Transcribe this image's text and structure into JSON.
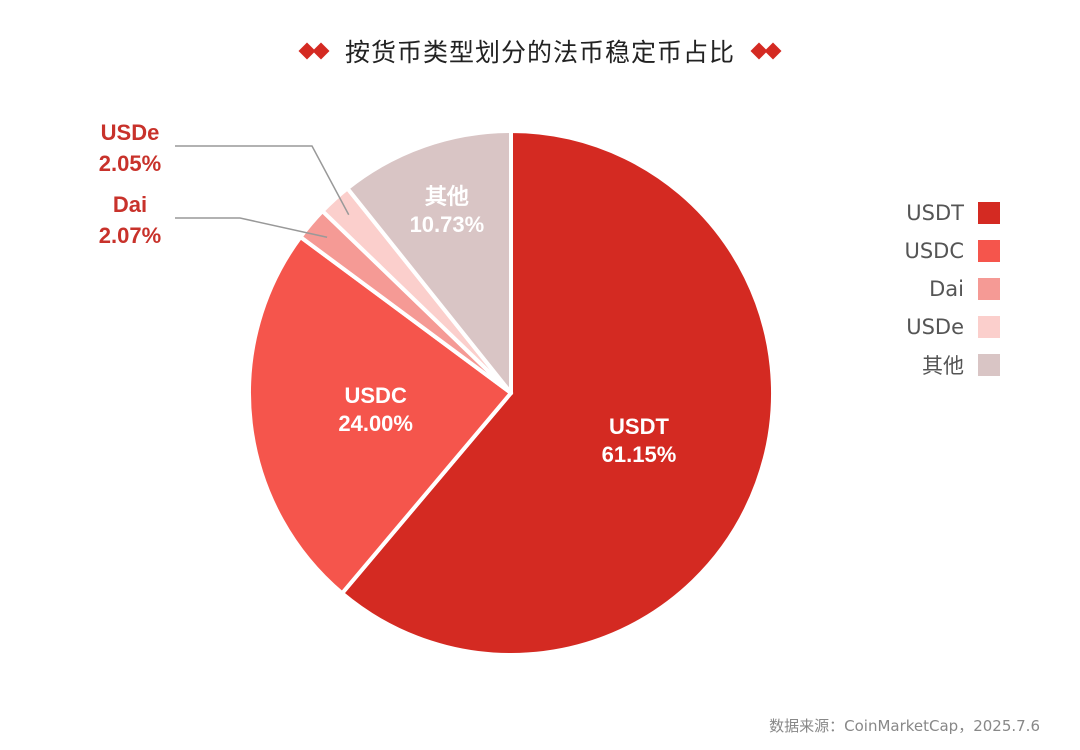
{
  "title": "按货币类型划分的法币稳定币占比",
  "source": "数据来源：CoinMarketCap，2025.7.6",
  "chart_data": {
    "type": "pie",
    "title": "按货币类型划分的法币稳定币占比",
    "slices": [
      {
        "name": "USDT",
        "value": 61.15,
        "value_label": "61.15%",
        "color": "#d42a22",
        "label_placement": "inside"
      },
      {
        "name": "USDC",
        "value": 24.0,
        "value_label": "24.00%",
        "color": "#f5554c",
        "label_placement": "inside"
      },
      {
        "name": "Dai",
        "value": 2.07,
        "value_label": "2.07%",
        "color": "#f59a95",
        "label_placement": "outside"
      },
      {
        "name": "USDe",
        "value": 2.05,
        "value_label": "2.05%",
        "color": "#fbcfcc",
        "label_placement": "outside"
      },
      {
        "name": "其他",
        "value": 10.73,
        "value_label": "10.73%",
        "color": "#d9c5c5",
        "label_placement": "inside"
      }
    ],
    "legend_placement": "right"
  }
}
